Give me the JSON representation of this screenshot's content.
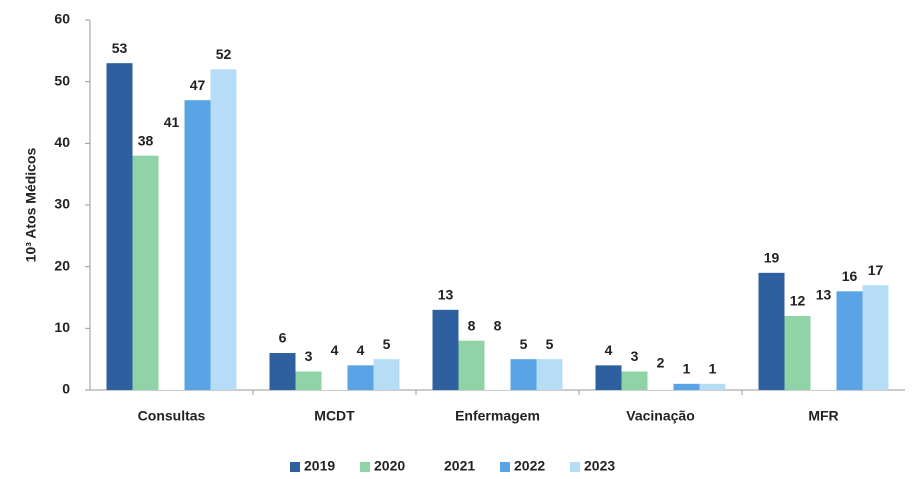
{
  "chart_data": {
    "type": "bar",
    "ylabel": "10³ Atos Médicos",
    "categories": [
      "Consultas",
      "MCDT",
      "Enfermagem",
      "Vacinação",
      "MFR"
    ],
    "series": [
      {
        "name": "2019",
        "color": "#2e5f9e",
        "values": [
          53,
          6,
          13,
          4,
          19
        ]
      },
      {
        "name": "2020",
        "color": "#8fd3a6",
        "values": [
          38,
          3,
          8,
          3,
          12
        ]
      },
      {
        "name": "2021",
        "color": "#ffffff",
        "values": [
          41,
          4,
          8,
          2,
          13
        ]
      },
      {
        "name": "2022",
        "color": "#5aa4e6",
        "values": [
          47,
          4,
          5,
          1,
          16
        ]
      },
      {
        "name": "2023",
        "color": "#b7dcf5",
        "values": [
          52,
          5,
          5,
          1,
          17
        ]
      }
    ],
    "ylim": [
      0,
      60
    ],
    "yticks": [
      0,
      10,
      20,
      30,
      40,
      50,
      60
    ],
    "grid": false,
    "legend": "bottom"
  }
}
